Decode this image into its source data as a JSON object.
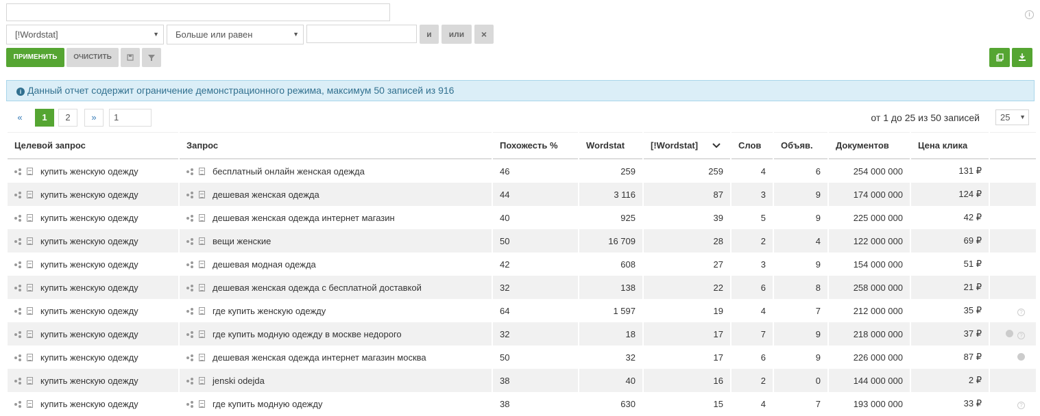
{
  "filter": {
    "field_select": "[!Wordstat]",
    "operator_select": "Больше или равен",
    "value_input": "",
    "and_label": "и",
    "or_label": "или",
    "remove_label": "×",
    "apply_label": "ПРИМЕНИТЬ",
    "clear_label": "ОЧИСТИТЬ"
  },
  "alert": {
    "text": "Данный отчет содержит ограничение демонстрационного режима, максимум 50 записей из 916"
  },
  "pager": {
    "prev": "«",
    "page1": "1",
    "page2": "2",
    "next": "»",
    "goto_value": "1",
    "summary": "от 1 до 25 из 50 записей",
    "page_size": "25"
  },
  "table": {
    "headers": [
      "Целевой запрос",
      "Запрос",
      "Похожесть %",
      "Wordstat",
      "[!Wordstat]",
      "Слов",
      "Объяв.",
      "Документов",
      "Цена клика",
      ""
    ],
    "rows": [
      {
        "target": "купить женскую одежду",
        "query": "бесплатный онлайн женская одежда",
        "sim": "46",
        "ws": "259",
        "ews": "259",
        "words": "4",
        "ads": "6",
        "docs": "254 000 000",
        "cpc": "131 ₽",
        "extra": ""
      },
      {
        "target": "купить женскую одежду",
        "query": "дешевая женская одежда",
        "sim": "44",
        "ws": "3 116",
        "ews": "87",
        "words": "3",
        "ads": "9",
        "docs": "174 000 000",
        "cpc": "124 ₽",
        "extra": ""
      },
      {
        "target": "купить женскую одежду",
        "query": "дешевая женская одежда интернет магазин",
        "sim": "40",
        "ws": "925",
        "ews": "39",
        "words": "5",
        "ads": "9",
        "docs": "225 000 000",
        "cpc": "42 ₽",
        "extra": ""
      },
      {
        "target": "купить женскую одежду",
        "query": "вещи женские",
        "sim": "50",
        "ws": "16 709",
        "ews": "28",
        "words": "2",
        "ads": "4",
        "docs": "122 000 000",
        "cpc": "69 ₽",
        "extra": ""
      },
      {
        "target": "купить женскую одежду",
        "query": "дешевая модная одежда",
        "sim": "42",
        "ws": "608",
        "ews": "27",
        "words": "3",
        "ads": "9",
        "docs": "154 000 000",
        "cpc": "51 ₽",
        "extra": ""
      },
      {
        "target": "купить женскую одежду",
        "query": "дешевая женская одежда с бесплатной доставкой",
        "sim": "32",
        "ws": "138",
        "ews": "22",
        "words": "6",
        "ads": "8",
        "docs": "258 000 000",
        "cpc": "21 ₽",
        "extra": ""
      },
      {
        "target": "купить женскую одежду",
        "query": "где купить женскую одежду",
        "sim": "64",
        "ws": "1 597",
        "ews": "19",
        "words": "4",
        "ads": "7",
        "docs": "212 000 000",
        "cpc": "35 ₽",
        "extra": "q"
      },
      {
        "target": "купить женскую одежду",
        "query": "где купить модную одежду в москве недорого",
        "sim": "32",
        "ws": "18",
        "ews": "17",
        "words": "7",
        "ads": "9",
        "docs": "218 000 000",
        "cpc": "37 ₽",
        "extra": "gq"
      },
      {
        "target": "купить женскую одежду",
        "query": "дешевая женская одежда интернет магазин москва",
        "sim": "50",
        "ws": "32",
        "ews": "17",
        "words": "6",
        "ads": "9",
        "docs": "226 000 000",
        "cpc": "87 ₽",
        "extra": "g"
      },
      {
        "target": "купить женскую одежду",
        "query": "jenski odejda",
        "sim": "38",
        "ws": "40",
        "ews": "16",
        "words": "2",
        "ads": "0",
        "docs": "144 000 000",
        "cpc": "2 ₽",
        "extra": ""
      },
      {
        "target": "купить женскую одежду",
        "query": "где купить модную одежду",
        "sim": "38",
        "ws": "630",
        "ews": "15",
        "words": "4",
        "ads": "7",
        "docs": "193 000 000",
        "cpc": "33 ₽",
        "extra": "q"
      }
    ]
  },
  "colors": {
    "green": "#55a532",
    "alert_bg": "#dbeef7",
    "alert_text": "#31708f"
  }
}
